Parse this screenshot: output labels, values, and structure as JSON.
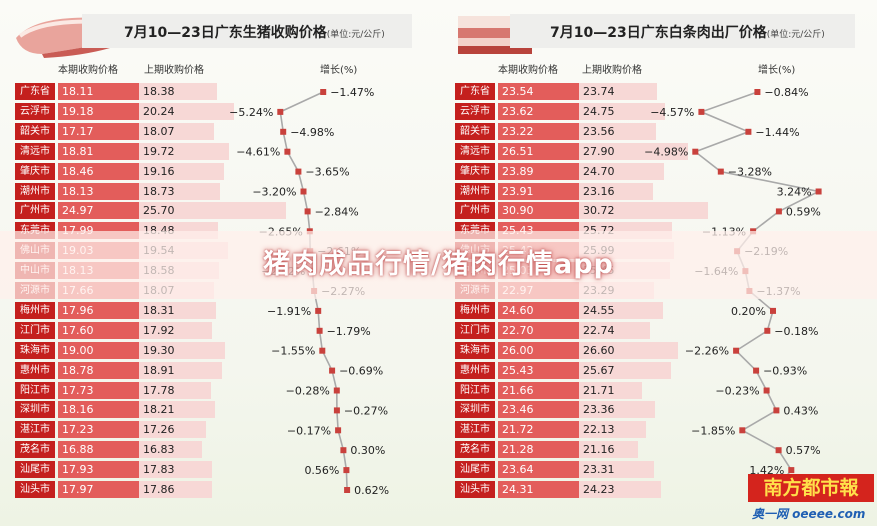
{
  "overlay": {
    "title": "猪肉成品行情/猪肉行情app"
  },
  "watermark": {
    "logo": "南方都市報",
    "site": "奥一网 oeeee.com"
  },
  "chart_data": [
    {
      "type": "bar",
      "title": "7月10—23日广东生猪收购价格",
      "unit": "(单位:元/公斤)",
      "columns": {
        "current": "本期收购价格",
        "previous": "上期收购价格",
        "growth": "增长(%)"
      },
      "categories": [
        "广东省",
        "云浮市",
        "韶关市",
        "清远市",
        "肇庆市",
        "潮州市",
        "广州市",
        "东莞市",
        "佛山市",
        "中山市",
        "河源市",
        "梅州市",
        "江门市",
        "珠海市",
        "惠州市",
        "阳江市",
        "深圳市",
        "湛江市",
        "茂名市",
        "汕尾市",
        "汕头市"
      ],
      "series": [
        {
          "name": "本期收购价格",
          "values": [
            18.11,
            19.18,
            17.17,
            18.81,
            18.46,
            18.13,
            24.97,
            17.99,
            19.03,
            18.13,
            17.66,
            17.96,
            17.6,
            19.0,
            18.78,
            17.73,
            18.16,
            17.23,
            16.88,
            17.93,
            17.97
          ]
        },
        {
          "name": "上期收购价格",
          "values": [
            18.38,
            20.24,
            18.07,
            19.72,
            19.16,
            18.73,
            25.7,
            18.48,
            19.54,
            18.58,
            18.07,
            18.31,
            17.92,
            19.3,
            18.91,
            17.78,
            18.21,
            17.26,
            16.83,
            17.83,
            17.86
          ]
        },
        {
          "name": "增长(%)",
          "values": [
            -1.47,
            -5.24,
            -4.98,
            -4.61,
            -3.65,
            -3.2,
            -2.84,
            -2.65,
            -2.61,
            -2.42,
            -2.27,
            -1.91,
            -1.79,
            -1.55,
            -0.69,
            -0.28,
            -0.27,
            -0.17,
            0.3,
            0.56,
            0.62
          ],
          "labels": [
            "−1.47%",
            "−5.24%",
            "−4.98%",
            "−4.61%",
            "−3.65%",
            "−3.20%",
            "−2.84%",
            "−2.65%",
            "−2.61%",
            "−2.42%",
            "−2.27%",
            "−1.91%",
            "−1.79%",
            "−1.55%",
            "−0.69%",
            "−0.28%",
            "−0.27%",
            "−0.17%",
            "0.30%",
            "0.56%",
            "0.62%"
          ]
        }
      ]
    },
    {
      "type": "bar",
      "title": "7月10—23日广东白条肉出厂价格",
      "unit": "(单位:元/公斤)",
      "columns": {
        "current": "本期收购价格",
        "previous": "上期收购价格",
        "growth": "增长(%)"
      },
      "categories": [
        "广东省",
        "云浮市",
        "韶关市",
        "清远市",
        "肇庆市",
        "潮州市",
        "广州市",
        "东莞市",
        "佛山市",
        "中山市",
        "河源市",
        "梅州市",
        "江门市",
        "珠海市",
        "惠州市",
        "阳江市",
        "深圳市",
        "湛江市",
        "茂名市",
        "汕尾市",
        "汕头市"
      ],
      "series": [
        {
          "name": "本期收购价格",
          "values": [
            23.54,
            23.62,
            23.22,
            26.51,
            23.89,
            23.91,
            30.9,
            25.43,
            25.42,
            25.03,
            22.97,
            24.6,
            22.7,
            26.0,
            25.43,
            21.66,
            23.46,
            21.72,
            21.28,
            23.64,
            24.31
          ]
        },
        {
          "name": "上期收购价格",
          "values": [
            23.74,
            24.75,
            23.56,
            27.9,
            24.7,
            23.16,
            30.72,
            25.72,
            25.99,
            25.45,
            23.29,
            24.55,
            22.74,
            26.6,
            25.67,
            21.71,
            23.36,
            22.13,
            21.16,
            23.31,
            24.23
          ]
        },
        {
          "name": "增长(%)",
          "values": [
            -0.84,
            -4.57,
            -1.44,
            -4.98,
            -3.28,
            3.24,
            0.59,
            -1.13,
            -2.19,
            -1.64,
            -1.37,
            0.2,
            -0.18,
            -2.26,
            -0.93,
            -0.23,
            0.43,
            -1.85,
            0.57,
            1.42,
            0.33
          ],
          "labels": [
            "−0.84%",
            "−4.57%",
            "−1.44%",
            "−4.98%",
            "−3.28%",
            "3.24%",
            "0.59%",
            "−1.13%",
            "−2.19%",
            "−1.64%",
            "−1.37%",
            "0.20%",
            "−0.18%",
            "−2.26%",
            "−0.93%",
            "−0.23%",
            "0.43%",
            "−1.85%",
            "0.57%",
            "1.42%",
            ""
          ]
        }
      ]
    }
  ]
}
